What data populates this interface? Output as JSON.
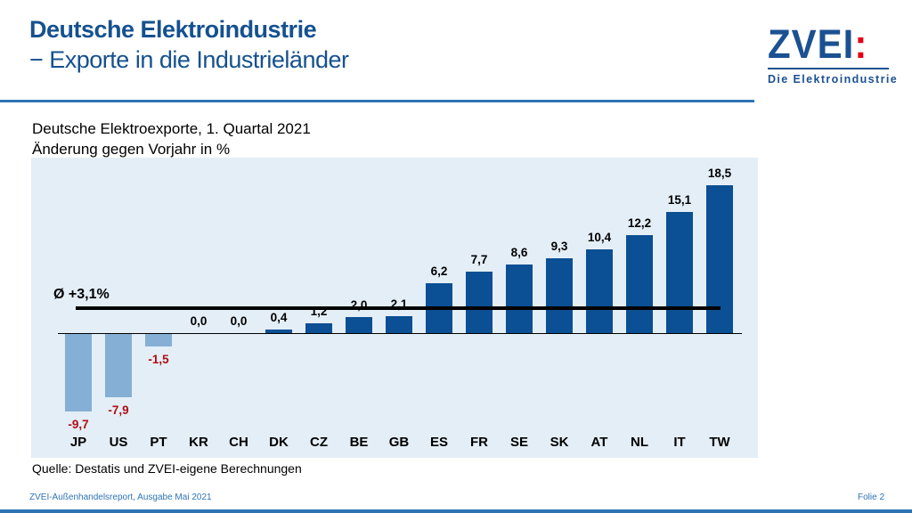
{
  "header": {
    "title_line1": "Deutsche Elektroindustrie",
    "title_line2": "− Exporte in die Industrieländer"
  },
  "logo": {
    "brand": "ZVEI",
    "colon": ":",
    "tagline": "Die Elektroindustrie",
    "blue": "#1b5191",
    "red": "#e30016"
  },
  "chart": {
    "subtitle_line1": "Deutsche Elektroexporte, 1. Quartal 2021",
    "subtitle_line2": "Änderung gegen Vorjahr in %",
    "average_label": "Ø +3,1%"
  },
  "chart_data": {
    "type": "bar",
    "title": "Deutsche Elektroexporte, 1. Quartal 2021",
    "subtitle": "Änderung gegen Vorjahr in %",
    "categories": [
      "JP",
      "US",
      "PT",
      "KR",
      "CH",
      "DK",
      "CZ",
      "BE",
      "GB",
      "ES",
      "FR",
      "SE",
      "SK",
      "AT",
      "NL",
      "IT",
      "TW"
    ],
    "values": [
      -9.7,
      -7.9,
      -1.5,
      0.0,
      0.0,
      0.4,
      1.2,
      2.0,
      2.1,
      6.2,
      7.7,
      8.6,
      9.3,
      10.4,
      12.2,
      15.1,
      18.5
    ],
    "value_labels": [
      "-9,7",
      "-7,9",
      "-1,5",
      "0,0",
      "0,0",
      "0,4",
      "1,2",
      "2,0",
      "2,1",
      "6,2",
      "7,7",
      "8,6",
      "9,3",
      "10,4",
      "12,2",
      "15,1",
      "18,5"
    ],
    "average": 3.1,
    "average_label": "Ø +3,1%",
    "xlabel": "",
    "ylabel": "Änderung gegen Vorjahr in %",
    "ylim": [
      -12,
      21
    ],
    "grid": false,
    "legend": "none",
    "colors": {
      "positive_bar": "#0b4f94",
      "negative_bar": "#85afd4",
      "positive_value_text": "#000000",
      "negative_value_text": "#b00e12",
      "plot_background": "#e4eef7",
      "axis_line": "#000000",
      "average_line": "#000000"
    }
  },
  "footer": {
    "source": "Quelle: Destatis und ZVEI-eigene Berechnungen",
    "report": "ZVEI-Außenhandelsreport, Ausgabe Mai 2021",
    "slide": "Folie 2"
  },
  "colors": {
    "title_blue": "#15518f",
    "header_rule_blue": "#2e74b5",
    "footer_text_blue": "#2e74b5",
    "bottom_bar_blue": "#2e74b5"
  }
}
